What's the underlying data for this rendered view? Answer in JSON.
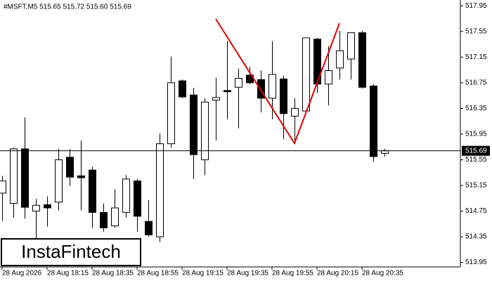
{
  "chart_data": {
    "type": "candlestick",
    "title": "#MSFT,M5  515.65 515.72 515.60 515.69",
    "categories": [
      "28 Aug 2026",
      null,
      null,
      null,
      "28 Aug 18:15",
      null,
      null,
      null,
      "28 Aug 18:35",
      null,
      null,
      null,
      "28 Aug 18:55",
      null,
      null,
      null,
      "28 Aug 19:15",
      null,
      null,
      null,
      "28 Aug 19:35",
      null,
      null,
      null,
      "28 Aug 19:55",
      null,
      null,
      null,
      "28 Aug 20:15",
      null,
      null,
      null,
      "28 Aug 20:35",
      null,
      null
    ],
    "open": [
      515.03,
      514.87,
      515.72,
      514.75,
      514.85,
      514.89,
      515.59,
      515.3,
      515.39,
      514.73,
      514.52,
      514.73,
      515.22,
      514.59,
      514.35,
      515.8,
      516.78,
      516.56,
      515.55,
      516.48,
      516.63,
      516.68,
      516.87,
      516.8,
      516.51,
      516.81,
      516.23,
      516.31,
      517.43,
      516.73,
      516.98,
      517.12,
      517.53,
      516.7,
      515.65
    ],
    "high": [
      515.3,
      515.74,
      516.21,
      514.94,
      514.98,
      515.72,
      515.72,
      515.85,
      515.44,
      514.87,
      515.09,
      515.31,
      515.25,
      514.92,
      515.96,
      517.16,
      516.8,
      516.67,
      516.51,
      516.83,
      517.4,
      516.97,
      517.0,
      516.94,
      517.4,
      516.86,
      516.51,
      517.45,
      517.45,
      517.32,
      517.56,
      517.53,
      517.56,
      516.73,
      515.72
    ],
    "low": [
      514.6,
      514.65,
      514.63,
      514.32,
      514.51,
      514.76,
      515.14,
      514.76,
      514.49,
      514.43,
      514.49,
      514.65,
      514.43,
      514.35,
      514.27,
      515.74,
      516.51,
      515.25,
      515.31,
      515.85,
      516.18,
      516.04,
      516.73,
      516.29,
      516.18,
      515.87,
      515.85,
      516.29,
      516.59,
      516.4,
      516.8,
      516.8,
      516.66,
      515.52,
      515.6
    ],
    "close": [
      515.22,
      515.72,
      514.81,
      514.84,
      514.8,
      515.55,
      515.28,
      515.27,
      514.73,
      514.49,
      514.8,
      515.25,
      514.67,
      514.38,
      515.8,
      516.75,
      516.53,
      515.63,
      516.45,
      516.52,
      516.61,
      516.82,
      516.75,
      516.51,
      516.88,
      516.27,
      516.35,
      517.45,
      516.73,
      516.94,
      517.25,
      517.53,
      516.68,
      515.6,
      515.69
    ],
    "up_color": "#ffffff",
    "down_color": "#000000",
    "last_price": 515.69,
    "ylim": [
      513.88,
      518.04
    ],
    "yticks": [
      513.95,
      514.35,
      514.75,
      515.15,
      515.55,
      515.95,
      516.35,
      516.75,
      517.15,
      517.55,
      517.95
    ],
    "watermark": "InstaFintech"
  }
}
